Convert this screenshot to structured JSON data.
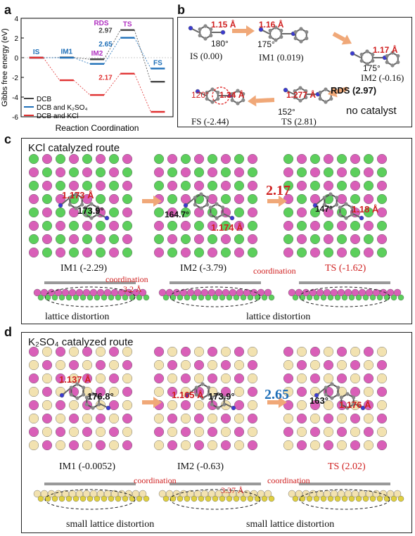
{
  "panels": {
    "a": {
      "label": "a"
    },
    "b": {
      "label": "b"
    },
    "c": {
      "label": "c"
    },
    "d": {
      "label": "d"
    }
  },
  "chart_data": {
    "type": "line",
    "title": "",
    "xlabel": "Reaction Coordination",
    "ylabel": "Gibbs free energy (eV)",
    "ylim": [
      -6,
      4
    ],
    "yticks": [
      "-6",
      "-4",
      "-2",
      "0",
      "2",
      "4"
    ],
    "categories": [
      "IS",
      "IM1",
      "IM2",
      "TS",
      "FS"
    ],
    "step_labels": {
      "IS": "IS",
      "IM1": "IM1",
      "IM2": "IM2",
      "TS": "TS",
      "FS": "FS",
      "RDS": "RDS"
    },
    "barrier_labels": [
      "2.97",
      "2.65",
      "2.17"
    ],
    "series": [
      {
        "name": "DCB",
        "color": "#444444",
        "values": [
          0.0,
          0.019,
          -0.16,
          2.81,
          -2.44
        ]
      },
      {
        "name": "DCB and K₂SO₄",
        "color": "#1e6fb8",
        "values": [
          0.0,
          -0.0052,
          -0.63,
          2.02,
          -1.1
        ]
      },
      {
        "name": "DCB and KCl",
        "color": "#e03030",
        "values": [
          0.0,
          -2.29,
          -3.79,
          -1.62,
          -5.5
        ]
      }
    ],
    "legend_position": "bottom-left"
  },
  "panel_b": {
    "states": [
      {
        "name": "IS (0.00)",
        "bond": "1.15 Å",
        "angle": "180°"
      },
      {
        "name": "IM1 (0.019)",
        "bond": "1.16 Å",
        "angle": "175°"
      },
      {
        "name": "IM2 (-0.16)",
        "bond": "1.17 Å",
        "angle": "175°"
      },
      {
        "name": "TS (2.81)",
        "bond": "1.277 Å",
        "angle": "152°"
      },
      {
        "name": "FS (-2.44)",
        "bond": "1.34 Å",
        "angle": "120°"
      }
    ],
    "rds": "RDS (2.97)",
    "no_catalyst": "no catalyst"
  },
  "panel_c": {
    "title": "KCl catalyzed route",
    "barrier": "2.17",
    "states": [
      {
        "name": "IM1 (-2.29)",
        "bond": "1.173 Å",
        "angle": "173.9°"
      },
      {
        "name": "IM2 (-3.79)",
        "bond": "1.174 Å",
        "angle": "164.7°"
      },
      {
        "name": "TS (-1.62)",
        "bond": "1.18 Å",
        "angle": "147°"
      }
    ],
    "coordination": "coordination",
    "distance": "3.2 Å",
    "distortion": "lattice distortion"
  },
  "panel_d": {
    "title": "K₂SO₄ catalyzed route",
    "barrier": "2.65",
    "states": [
      {
        "name": "IM1 (-0.0052)",
        "bond": "1.137 Å",
        "angle": "176.8°"
      },
      {
        "name": "IM2 (-0.63)",
        "bond": "1.165 Å",
        "angle": "173.9°"
      },
      {
        "name": "TS (2.02)",
        "bond": "1.176 Å",
        "angle": "163°"
      }
    ],
    "coordination": "coordination",
    "distance": "3.37 Å",
    "distortion": "small lattice distortion"
  }
}
